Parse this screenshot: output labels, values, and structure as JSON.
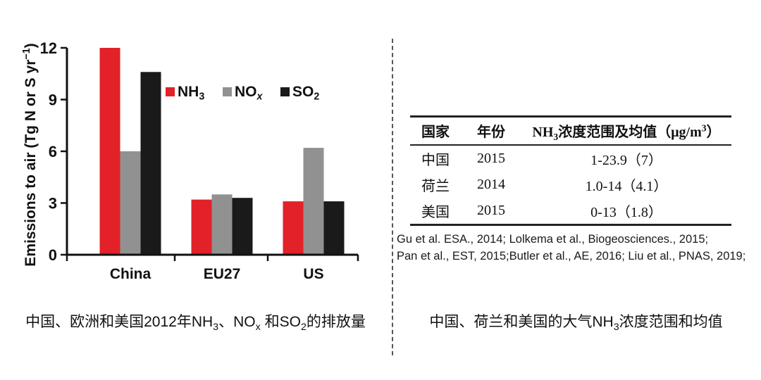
{
  "chart_data": {
    "type": "bar",
    "title": "",
    "xlabel": "",
    "ylabel_segments": [
      {
        "t": "Emissions to air (Tg N or S yr"
      },
      {
        "t": "−1",
        "sup": true
      },
      {
        "t": ")"
      }
    ],
    "ylim": [
      0,
      12
    ],
    "yticks": [
      0,
      3,
      6,
      9,
      12
    ],
    "grid": false,
    "legend_position": "inside-upper-middle",
    "categories": [
      "China",
      "EU27",
      "US"
    ],
    "series": [
      {
        "label_segments": [
          {
            "t": "NH"
          },
          {
            "t": "3",
            "sub": true
          }
        ],
        "color": "#e32128",
        "values": [
          12,
          3.2,
          3.1
        ]
      },
      {
        "label_segments": [
          {
            "t": "NO"
          },
          {
            "t": "x",
            "sub": true,
            "italic": true
          }
        ],
        "color": "#919191",
        "values": [
          6,
          3.5,
          6.2
        ]
      },
      {
        "label_segments": [
          {
            "t": "SO"
          },
          {
            "t": "2",
            "sub": true
          }
        ],
        "color": "#1a1a1a",
        "values": [
          10.6,
          3.3,
          3.1
        ]
      }
    ],
    "axis_color": "#111111"
  },
  "table": {
    "headers": [
      {
        "segments": [
          {
            "t": "国家"
          }
        ]
      },
      {
        "segments": [
          {
            "t": "年份"
          }
        ]
      },
      {
        "segments": [
          {
            "t": "NH"
          },
          {
            "t": "3",
            "sub": true
          },
          {
            "t": "浓度范围及均值（μg/m"
          },
          {
            "t": "3",
            "sup": true
          },
          {
            "t": "）"
          }
        ]
      }
    ],
    "rows": [
      {
        "country": "中国",
        "year": "2015",
        "value": "1-23.9（7）"
      },
      {
        "country": "荷兰",
        "year": "2014",
        "value": "1.0-14（4.1）"
      },
      {
        "country": "美国",
        "year": "2015",
        "value": "0-13（1.8）"
      }
    ]
  },
  "citations": {
    "lines": [
      "Gu et al. ESA., 2014; Lolkema et al., Biogeosciences., 2015;",
      "Pan et al., EST, 2015;Butler et al., AE, 2016; Liu et al., PNAS, 2019;"
    ]
  },
  "captions": {
    "left_segments": [
      {
        "t": "中国、欧洲和美国2012年NH"
      },
      {
        "t": "3",
        "sub": true
      },
      {
        "t": "、NO"
      },
      {
        "t": "x",
        "sub": true
      },
      {
        "t": " 和SO"
      },
      {
        "t": "2",
        "sub": true
      },
      {
        "t": "的排放量"
      }
    ],
    "right_segments": [
      {
        "t": "中国、荷兰和美国的大气NH"
      },
      {
        "t": "3",
        "sub": true
      },
      {
        "t": "浓度范围和均值"
      }
    ]
  },
  "divider_color": "#555555"
}
